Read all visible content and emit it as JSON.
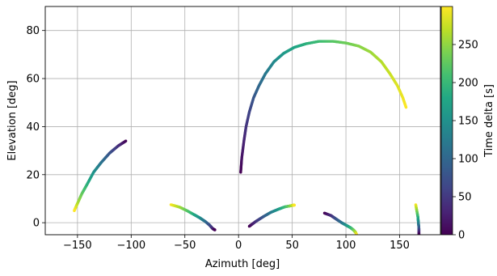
{
  "chart_data": {
    "type": "scatter",
    "xlabel": "Azimuth [deg]",
    "ylabel": "Elevation [deg]",
    "colorbar_label": "Time delta [s]",
    "xlim": [
      -180,
      188
    ],
    "ylim": [
      -5,
      90
    ],
    "clim": [
      0,
      300
    ],
    "xticks": [
      -150,
      -100,
      -50,
      0,
      50,
      100,
      150
    ],
    "xtick_labels": [
      "−150",
      "−100",
      "−50",
      "0",
      "50",
      "100",
      "150"
    ],
    "yticks": [
      0,
      20,
      40,
      60,
      80
    ],
    "ytick_labels": [
      "0",
      "20",
      "40",
      "60",
      "80"
    ],
    "cticks": [
      0,
      50,
      100,
      150,
      200,
      250
    ],
    "ctick_labels": [
      "0",
      "50",
      "100",
      "150",
      "200",
      "250"
    ],
    "grid": true,
    "colormap": "viridis",
    "series": [
      {
        "points": [
          [
            -105,
            34,
            0
          ],
          [
            -112,
            32,
            37
          ],
          [
            -120,
            29,
            75
          ],
          [
            -128,
            25,
            112
          ],
          [
            -135,
            21,
            150
          ],
          [
            -141,
            16,
            187
          ],
          [
            -146,
            12,
            225
          ],
          [
            -150,
            8,
            262
          ],
          [
            -153,
            5,
            300
          ]
        ]
      },
      {
        "points": [
          [
            -63,
            7.5,
            300
          ],
          [
            -55,
            6.5,
            262
          ],
          [
            -48,
            5,
            225
          ],
          [
            -42,
            3.5,
            187
          ],
          [
            -36,
            2,
            150
          ],
          [
            -31,
            0.5,
            112
          ],
          [
            -27,
            -1,
            75
          ],
          [
            -24,
            -2.5,
            37
          ],
          [
            -22,
            -3,
            0
          ]
        ]
      },
      {
        "points": [
          [
            10,
            -1.5,
            0
          ],
          [
            16,
            0.5,
            40
          ],
          [
            23,
            2.5,
            80
          ],
          [
            30,
            4.3,
            120
          ],
          [
            37,
            5.6,
            160
          ],
          [
            43,
            6.6,
            200
          ],
          [
            48,
            7,
            240
          ],
          [
            51,
            7.3,
            280
          ],
          [
            52,
            7.3,
            300
          ]
        ]
      },
      {
        "points": [
          [
            2,
            21,
            0
          ],
          [
            3,
            27,
            15
          ],
          [
            5,
            34,
            30
          ],
          [
            7,
            40,
            45
          ],
          [
            10,
            46,
            60
          ],
          [
            14,
            52,
            80
          ],
          [
            19,
            57,
            100
          ],
          [
            25,
            62,
            120
          ],
          [
            33,
            67,
            140
          ],
          [
            42,
            70.5,
            160
          ],
          [
            52,
            73,
            175
          ],
          [
            63,
            74.5,
            190
          ],
          [
            75,
            75.5,
            205
          ],
          [
            88,
            75.5,
            220
          ],
          [
            100,
            74.8,
            232
          ],
          [
            112,
            73.5,
            245
          ],
          [
            123,
            71,
            255
          ],
          [
            133,
            67,
            265
          ],
          [
            141,
            62,
            275
          ],
          [
            148,
            57,
            285
          ],
          [
            153,
            52,
            292
          ],
          [
            156,
            48,
            300
          ]
        ]
      },
      {
        "points": [
          [
            80,
            4,
            0
          ],
          [
            86,
            3,
            37
          ],
          [
            91,
            1.5,
            75
          ],
          [
            96,
            0,
            112
          ],
          [
            100,
            -1,
            150
          ],
          [
            104,
            -2,
            187
          ],
          [
            107,
            -3,
            225
          ],
          [
            109,
            -4,
            262
          ],
          [
            110,
            -5,
            300
          ]
        ]
      },
      {
        "points": [
          [
            165,
            7.5,
            300
          ],
          [
            166,
            5,
            250
          ],
          [
            167,
            2.5,
            200
          ],
          [
            167.5,
            0,
            140
          ],
          [
            168,
            -2.5,
            80
          ],
          [
            168,
            -5,
            0
          ]
        ]
      }
    ]
  }
}
